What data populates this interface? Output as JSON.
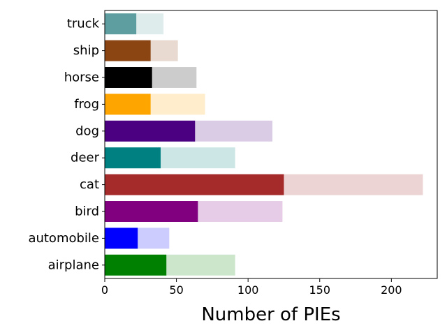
{
  "chart_data": {
    "type": "bar",
    "orientation": "horizontal",
    "stacked_overlay": true,
    "xlabel": "Number of PIEs",
    "ylabel": "",
    "title": "",
    "xlim": [
      0,
      232
    ],
    "xticks": [
      0,
      50,
      100,
      150,
      200
    ],
    "categories": [
      "airplane",
      "automobile",
      "bird",
      "cat",
      "deer",
      "dog",
      "frog",
      "horse",
      "ship",
      "truck"
    ],
    "series": [
      {
        "values": [
          43,
          23,
          65,
          125,
          39,
          63,
          32,
          33,
          32,
          22
        ]
      },
      {
        "values": [
          91,
          45,
          124,
          222,
          91,
          117,
          70,
          64,
          51,
          41
        ]
      }
    ],
    "colors": [
      "#008000",
      "#0000ff",
      "#800080",
      "#a52a2a",
      "#008080",
      "#4b0082",
      "#ffa500",
      "#000000",
      "#8b4513",
      "#5f9ea0"
    ],
    "light_alpha": 0.2,
    "grid": false,
    "legend": "none"
  }
}
